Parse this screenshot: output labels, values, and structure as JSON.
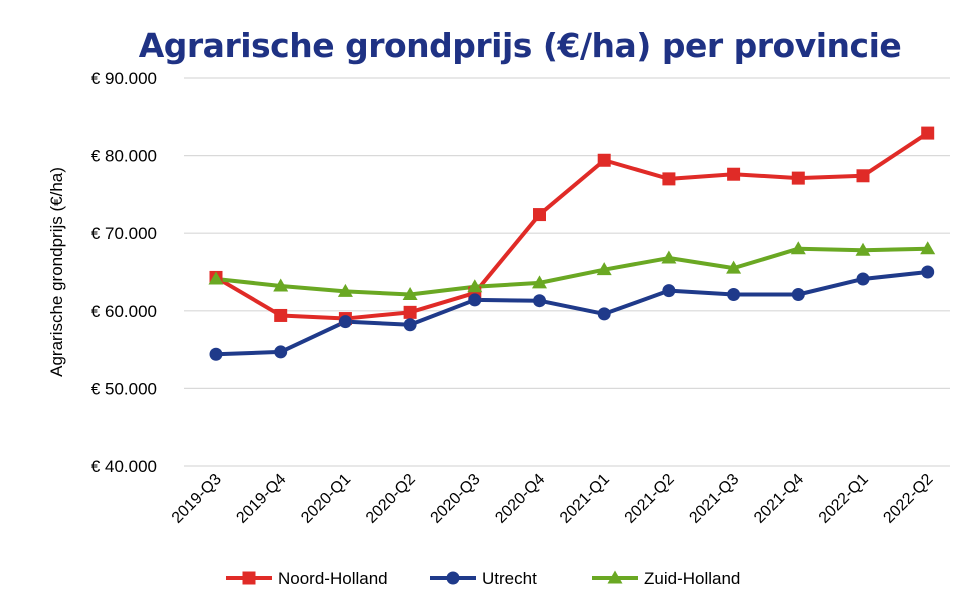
{
  "chart_data": {
    "type": "line",
    "title": "Agrarische grondprijs (€/ha) per provincie",
    "xlabel": "",
    "ylabel": "Agrarische grondprijs (€/ha)",
    "ylim": [
      40000,
      90000
    ],
    "y_ticks": [
      "€ 40.000",
      "€ 50.000",
      "€ 60.000",
      "€ 70.000",
      "€ 80.000",
      "€ 90.000"
    ],
    "grid": "horizontal",
    "legend_position": "bottom",
    "categories": [
      "2019-Q3",
      "2019-Q4",
      "2020-Q1",
      "2020-Q2",
      "2020-Q3",
      "2020-Q4",
      "2021-Q1",
      "2021-Q2",
      "2021-Q3",
      "2021-Q4",
      "2022-Q1",
      "2022-Q2"
    ],
    "series": [
      {
        "name": "Noord-Holland",
        "color": "#e02b27",
        "marker": "square",
        "values": [
          64300,
          59400,
          59000,
          59800,
          62300,
          72400,
          79400,
          77000,
          77600,
          77100,
          77400,
          82900
        ]
      },
      {
        "name": "Utrecht",
        "color": "#1f3a8a",
        "marker": "circle",
        "values": [
          54400,
          54700,
          58600,
          58200,
          61400,
          61300,
          59600,
          62600,
          62100,
          62100,
          64100,
          65000
        ]
      },
      {
        "name": "Zuid-Holland",
        "color": "#6aa823",
        "marker": "triangle",
        "values": [
          64100,
          63200,
          62500,
          62100,
          63100,
          63600,
          65300,
          66800,
          65500,
          68000,
          67800,
          68000
        ]
      }
    ]
  }
}
